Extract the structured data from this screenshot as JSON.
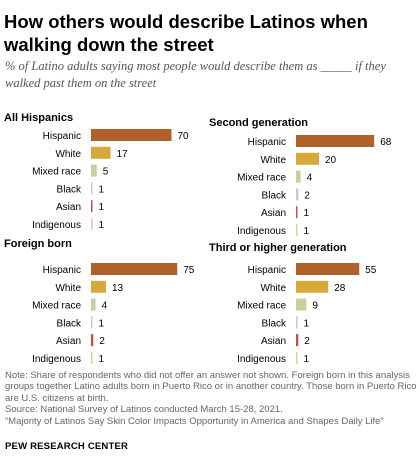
{
  "title": "How others would describe Latinos when walking down the street",
  "subtitle": "% of Latino adults saying most people would describe them as _____ if they walked past them on the street",
  "notes": {
    "note": "Note: Share of respondents who did not offer an answer not shown. Foreign born in this analysis groups together Latino adults born in Puerto Rico or in another country. Those born in Puerto Rico are U.S. citizens at birth.",
    "source": "Source: National Survey of Latinos conducted March 15-28, 2021.",
    "report": "“Majority of Latinos Say Skin Color Impacts Opportunity in America and Shapes Daily Life”"
  },
  "brand": "PEW RESEARCH CENTER",
  "colors": {
    "Hispanic": "#b0612a",
    "White": "#d6a93a",
    "Mixed race": "#c7d19c",
    "Black": "#c9c9c9",
    "Asian": "#c0504d",
    "Indigenous": "#d9d2a4"
  },
  "chart_data": [
    {
      "type": "bar",
      "title": "All Hispanics",
      "categories": [
        "Hispanic",
        "White",
        "Mixed race",
        "Black",
        "Asian",
        "Indigenous"
      ],
      "values": [
        70,
        17,
        5,
        1,
        1,
        1
      ]
    },
    {
      "type": "bar",
      "title": "Second generation",
      "categories": [
        "Hispanic",
        "White",
        "Mixed race",
        "Black",
        "Asian",
        "Indigenous"
      ],
      "values": [
        68,
        20,
        4,
        2,
        1,
        1
      ]
    },
    {
      "type": "bar",
      "title": "Foreign born",
      "categories": [
        "Hispanic",
        "White",
        "Mixed race",
        "Black",
        "Asian",
        "Indigenous"
      ],
      "values": [
        75,
        13,
        4,
        1,
        2,
        1
      ]
    },
    {
      "type": "bar",
      "title": "Third or higher generation",
      "categories": [
        "Hispanic",
        "White",
        "Mixed race",
        "Black",
        "Asian",
        "Indigenous"
      ],
      "values": [
        55,
        28,
        9,
        1,
        2,
        1
      ]
    }
  ]
}
